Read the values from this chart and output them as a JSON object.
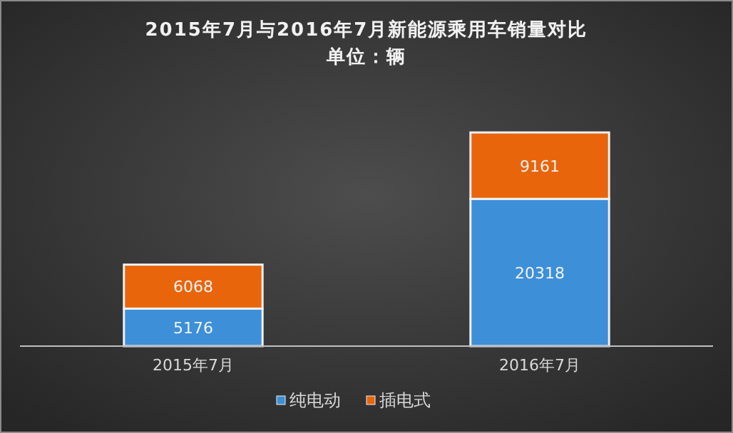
{
  "chart_data": {
    "type": "bar",
    "title": "2015年7月与2016年7月新能源乘用车销量对比",
    "subtitle": "单位：辆",
    "categories": [
      "2015年7月",
      "2016年7月"
    ],
    "stacked": true,
    "data_labels": true,
    "legend": "bottom",
    "series": [
      {
        "name": "纯电动",
        "color": "#3d8fd8",
        "values": [
          5176,
          20318
        ]
      },
      {
        "name": "插电式",
        "color": "#e8650c",
        "values": [
          6068,
          9161
        ]
      }
    ]
  }
}
